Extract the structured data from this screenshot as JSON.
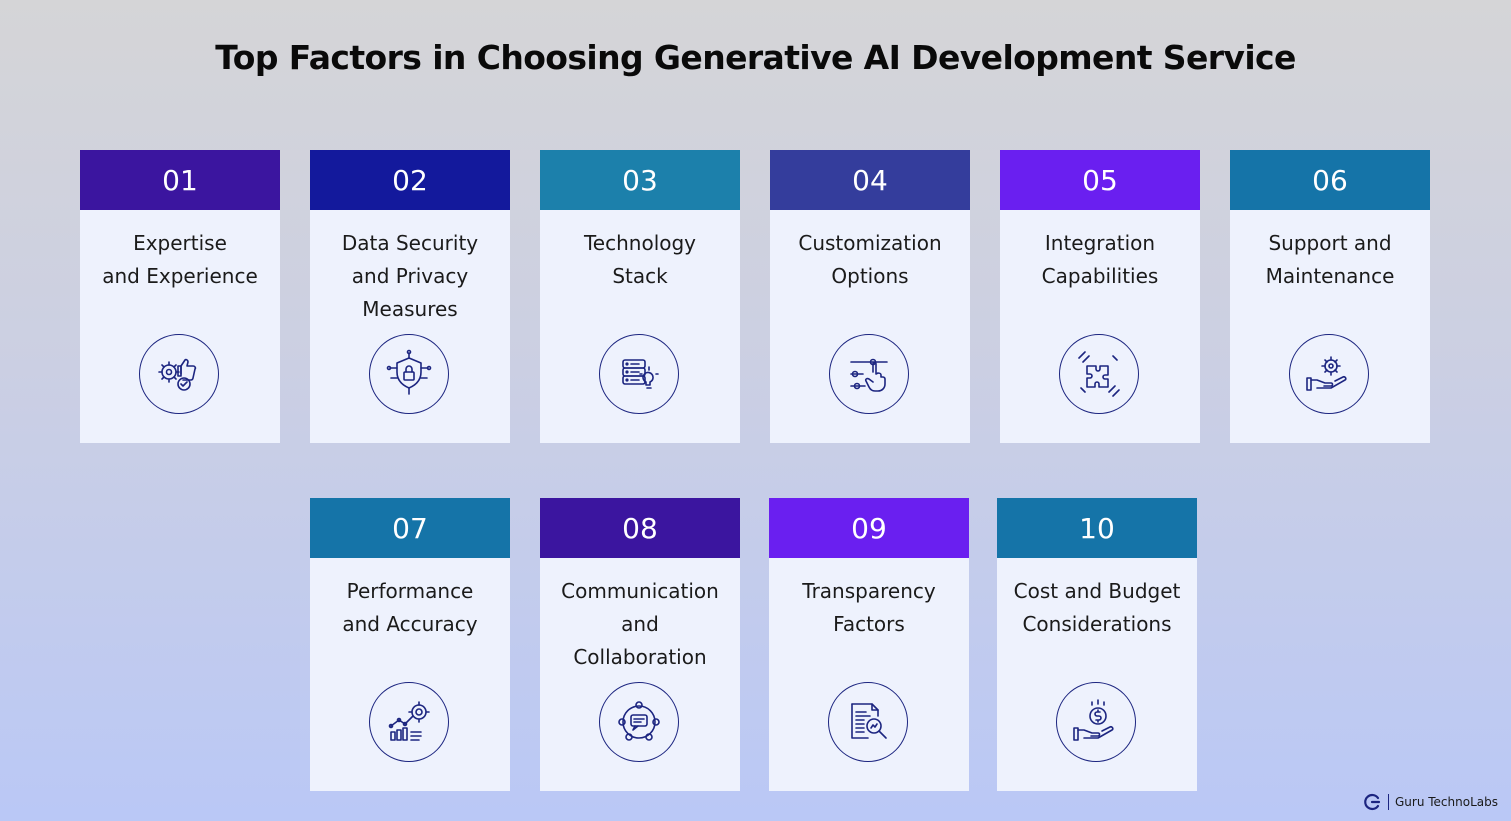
{
  "title": "Top Factors in Choosing Generative AI Development Service",
  "cards": [
    {
      "number": "01",
      "label": "Expertise\nand Experience",
      "color": "#3b159f",
      "icon": "gear-thumbs-up-icon"
    },
    {
      "number": "02",
      "label": "Data Security\nand Privacy\nMeasures",
      "color": "#13199c",
      "icon": "shield-lock-icon"
    },
    {
      "number": "03",
      "label": "Technology\nStack",
      "color": "#1c80ab",
      "icon": "database-bulb-icon"
    },
    {
      "number": "04",
      "label": "Customization\nOptions",
      "color": "#343d9c",
      "icon": "slider-hand-icon"
    },
    {
      "number": "05",
      "label": "Integration\nCapabilities",
      "color": "#6a1ff0",
      "icon": "puzzle-hands-icon"
    },
    {
      "number": "06",
      "label": "Support and\nMaintenance",
      "color": "#1574a8",
      "icon": "hand-gear-icon"
    },
    {
      "number": "07",
      "label": "Performance\nand Accuracy",
      "color": "#1574a8",
      "icon": "growth-target-icon"
    },
    {
      "number": "08",
      "label": "Communication\nand\nCollaboration",
      "color": "#3b159f",
      "icon": "chat-team-icon"
    },
    {
      "number": "09",
      "label": "Transparency\nFactors",
      "color": "#6a1ff0",
      "icon": "document-search-icon"
    },
    {
      "number": "10",
      "label": "Cost and Budget\nConsiderations",
      "color": "#1574a8",
      "icon": "hand-coin-icon"
    }
  ],
  "logo": {
    "brand": "Guru TechnoLabs",
    "icon": "guru-logo-icon"
  }
}
